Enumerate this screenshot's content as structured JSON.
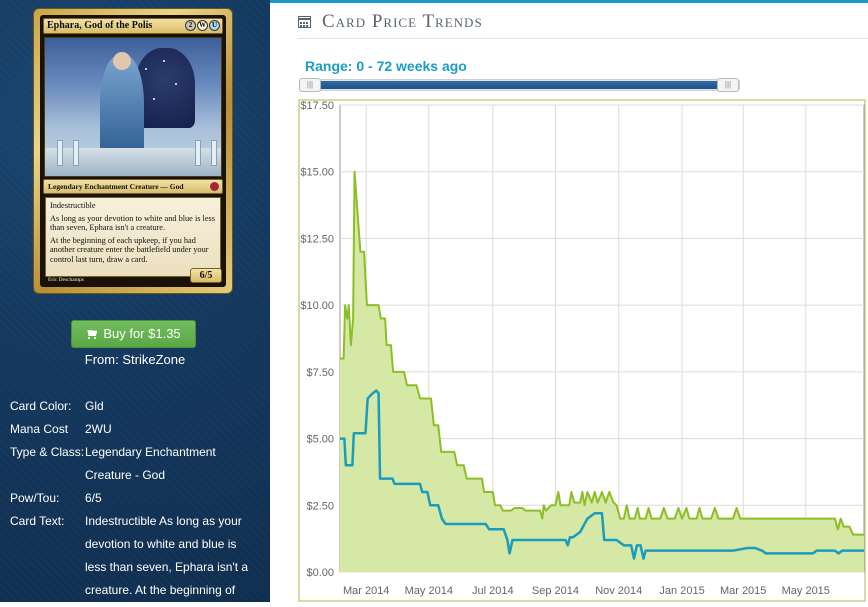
{
  "card": {
    "title": "Ephara, God of the Polis",
    "mana_symbols": [
      "2",
      "W",
      "U"
    ],
    "type_line": "Legendary Enchantment Creature — God",
    "rules_paragraph_1": "Indestructible",
    "rules_paragraph_2": "As long as your devotion to white and blue is less than seven, Ephara isn't a creature.",
    "rules_paragraph_3": "At the beginning of each upkeep, if you had another creature enter the battlefield under your control last turn, draw a card.",
    "power_toughness": "6/5",
    "artist": "Eric Deschamps"
  },
  "buy": {
    "label": "Buy for $1.35",
    "from": "From: StrikeZone"
  },
  "details": [
    {
      "label": "Card Color:",
      "value": "Gld"
    },
    {
      "label": "Mana Cost",
      "value": "2WU"
    },
    {
      "label": "Type & Class:",
      "value": "Legendary Enchantment"
    },
    {
      "label": "",
      "value": "Creature - God"
    },
    {
      "label": "Pow/Tou:",
      "value": "6/5"
    },
    {
      "label": "Card Text:",
      "value": "Indestructible As long as your"
    },
    {
      "label": "",
      "value": "devotion to white and blue is"
    },
    {
      "label": "",
      "value": "less than seven, Ephara isn't a"
    },
    {
      "label": "",
      "value": "creature. At the beginning of"
    }
  ],
  "header": {
    "title": "Card Price Trends"
  },
  "range": {
    "label": "Range: 0 - 72 weeks ago",
    "left_handle": "|||",
    "right_handle": "|||"
  },
  "colors": {
    "accent": "#1b9cc7",
    "green_line": "#8cbf26",
    "green_fill": "#d5e8a5",
    "blue_line": "#1a9dbd",
    "buy_green": "#5fad4a",
    "panel_bg": "#14385e"
  },
  "chart_data": {
    "type": "area",
    "title": "",
    "xlabel": "",
    "ylabel": "",
    "ylim": [
      0,
      17.5
    ],
    "xlim": [
      0,
      72
    ],
    "y_ticks": [
      "$0.00",
      "$2.50",
      "$5.00",
      "$7.50",
      "$10.00",
      "$12.50",
      "$15.00",
      "$17.50"
    ],
    "y_tick_values": [
      0,
      2.5,
      5,
      7.5,
      10,
      12.5,
      15,
      17.5
    ],
    "x_ticks": [
      {
        "label": "Mar 2014",
        "week": 3.6
      },
      {
        "label": "May 2014",
        "week": 12.2
      },
      {
        "label": "Jul 2014",
        "week": 21.0
      },
      {
        "label": "Sep 2014",
        "week": 29.6
      },
      {
        "label": "Nov 2014",
        "week": 38.3
      },
      {
        "label": "Jan 2015",
        "week": 47.0
      },
      {
        "label": "Mar 2015",
        "week": 55.4
      },
      {
        "label": "May 2015",
        "week": 64.0
      }
    ],
    "grid": true,
    "series": [
      {
        "points": [
          [
            0,
            8.0
          ],
          [
            0.5,
            8.0
          ],
          [
            0.7,
            10.0
          ],
          [
            1.0,
            9.5
          ],
          [
            1.2,
            10.0
          ],
          [
            1.5,
            8.5
          ],
          [
            1.8,
            9.5
          ],
          [
            2.0,
            15.0
          ],
          [
            2.4,
            13.5
          ],
          [
            2.8,
            12.0
          ],
          [
            3.3,
            12.0
          ],
          [
            3.7,
            10.0
          ],
          [
            5.3,
            10.0
          ],
          [
            5.6,
            9.5
          ],
          [
            6.2,
            9.5
          ],
          [
            6.4,
            8.5
          ],
          [
            7.0,
            8.5
          ],
          [
            7.3,
            7.5
          ],
          [
            8.8,
            7.5
          ],
          [
            9.2,
            7.0
          ],
          [
            10.5,
            7.0
          ],
          [
            11.0,
            6.5
          ],
          [
            12.5,
            6.5
          ],
          [
            12.9,
            5.5
          ],
          [
            13.5,
            5.5
          ],
          [
            13.9,
            4.5
          ],
          [
            15.7,
            4.5
          ],
          [
            16.1,
            4.0
          ],
          [
            17.0,
            4.0
          ],
          [
            17.4,
            3.5
          ],
          [
            19.5,
            3.5
          ],
          [
            19.8,
            3.0
          ],
          [
            21.0,
            3.0
          ],
          [
            21.3,
            2.5
          ],
          [
            22.0,
            2.5
          ],
          [
            22.4,
            2.3
          ],
          [
            23.5,
            2.3
          ],
          [
            24.0,
            2.4
          ],
          [
            25.0,
            2.4
          ],
          [
            25.5,
            2.3
          ],
          [
            27.5,
            2.3
          ],
          [
            27.8,
            2.0
          ],
          [
            28.0,
            2.5
          ],
          [
            28.3,
            2.3
          ],
          [
            29.0,
            2.5
          ],
          [
            29.6,
            2.5
          ],
          [
            30.0,
            3.0
          ],
          [
            30.3,
            2.5
          ],
          [
            31.5,
            2.5
          ],
          [
            31.8,
            3.0
          ],
          [
            32.2,
            2.6
          ],
          [
            33.0,
            2.6
          ],
          [
            33.3,
            3.0
          ],
          [
            33.6,
            2.5
          ],
          [
            34.0,
            3.0
          ],
          [
            34.6,
            2.6
          ],
          [
            35.0,
            3.0
          ],
          [
            35.4,
            2.6
          ],
          [
            36.0,
            3.0
          ],
          [
            36.5,
            2.6
          ],
          [
            37.0,
            3.0
          ],
          [
            37.6,
            2.6
          ],
          [
            38.0,
            2.5
          ],
          [
            38.5,
            2.0
          ],
          [
            39.0,
            2.0
          ],
          [
            39.4,
            2.5
          ],
          [
            39.8,
            2.0
          ],
          [
            40.5,
            2.0
          ],
          [
            40.9,
            2.4
          ],
          [
            41.2,
            2.0
          ],
          [
            42.0,
            2.0
          ],
          [
            42.4,
            2.4
          ],
          [
            42.8,
            2.0
          ],
          [
            44.0,
            2.0
          ],
          [
            44.5,
            2.4
          ],
          [
            45.0,
            2.0
          ],
          [
            46.0,
            2.0
          ],
          [
            46.5,
            2.4
          ],
          [
            47.0,
            2.0
          ],
          [
            47.6,
            2.4
          ],
          [
            48.0,
            2.0
          ],
          [
            49.0,
            2.0
          ],
          [
            49.4,
            2.4
          ],
          [
            49.8,
            2.0
          ],
          [
            51.0,
            2.0
          ],
          [
            51.5,
            2.4
          ],
          [
            52.0,
            2.0
          ],
          [
            54.0,
            2.0
          ],
          [
            54.5,
            2.4
          ],
          [
            55.0,
            2.0
          ],
          [
            60.0,
            2.0
          ],
          [
            62.0,
            2.0
          ],
          [
            68.0,
            2.0
          ],
          [
            68.4,
            1.6
          ],
          [
            68.8,
            2.0
          ],
          [
            69.2,
            1.7
          ],
          [
            70.0,
            1.7
          ],
          [
            70.5,
            1.4
          ],
          [
            72.0,
            1.4
          ]
        ],
        "line_color": "#8cbf26",
        "fill_color": "#d5e8a5"
      },
      {
        "points": [
          [
            0,
            5.0
          ],
          [
            0.6,
            5.0
          ],
          [
            0.8,
            4.0
          ],
          [
            1.7,
            4.0
          ],
          [
            1.9,
            5.2
          ],
          [
            3.5,
            5.2
          ],
          [
            3.8,
            6.5
          ],
          [
            4.5,
            6.7
          ],
          [
            5.0,
            6.8
          ],
          [
            5.3,
            6.7
          ],
          [
            5.5,
            3.5
          ],
          [
            7.2,
            3.5
          ],
          [
            7.5,
            3.3
          ],
          [
            11.0,
            3.3
          ],
          [
            11.3,
            3.0
          ],
          [
            12.0,
            3.0
          ],
          [
            12.4,
            2.5
          ],
          [
            13.5,
            2.5
          ],
          [
            13.8,
            2.2
          ],
          [
            14.0,
            2.0
          ],
          [
            14.5,
            1.8
          ],
          [
            20.0,
            1.8
          ],
          [
            20.5,
            1.6
          ],
          [
            22.5,
            1.6
          ],
          [
            23.0,
            1.2
          ],
          [
            23.3,
            0.7
          ],
          [
            23.7,
            1.2
          ],
          [
            30.0,
            1.2
          ],
          [
            31.0,
            1.2
          ],
          [
            31.3,
            1.0
          ],
          [
            31.6,
            1.3
          ],
          [
            32.0,
            1.3
          ],
          [
            33.0,
            1.5
          ],
          [
            34.0,
            2.0
          ],
          [
            35.0,
            2.2
          ],
          [
            36.0,
            2.2
          ],
          [
            36.3,
            1.2
          ],
          [
            38.0,
            1.2
          ],
          [
            39.0,
            1.0
          ],
          [
            40.0,
            1.0
          ],
          [
            40.4,
            0.5
          ],
          [
            40.8,
            1.0
          ],
          [
            41.3,
            1.0
          ],
          [
            41.7,
            0.5
          ],
          [
            42.0,
            0.8
          ],
          [
            45.0,
            0.8
          ],
          [
            50.0,
            0.8
          ],
          [
            54.0,
            0.8
          ],
          [
            56.0,
            0.9
          ],
          [
            57.0,
            0.9
          ],
          [
            58.0,
            0.8
          ],
          [
            58.5,
            0.7
          ],
          [
            65.0,
            0.7
          ],
          [
            65.5,
            0.8
          ],
          [
            68.0,
            0.8
          ],
          [
            68.5,
            0.7
          ],
          [
            69.0,
            0.8
          ],
          [
            72.0,
            0.8
          ]
        ],
        "line_color": "#1a9dbd"
      }
    ]
  }
}
